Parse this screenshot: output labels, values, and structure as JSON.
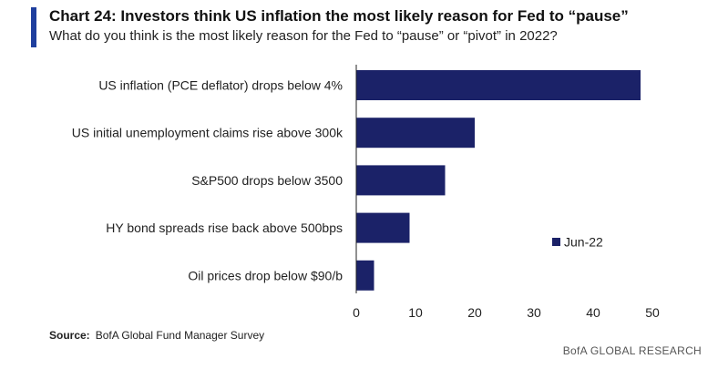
{
  "header": {
    "title": "Chart 24: Investors think US inflation the most likely reason for Fed to “pause”",
    "subtitle": "What do you think is the most likely reason for the Fed to “pause” or “pivot” in 2022?"
  },
  "chart_data": {
    "type": "bar",
    "orientation": "horizontal",
    "categories": [
      "US inflation (PCE deflator) drops below 4%",
      "US initial unemployment claims rise above 300k",
      "S&P500 drops below 3500",
      "HY bond spreads rise back above 500bps",
      "Oil prices drop below $90/b"
    ],
    "series": [
      {
        "name": "Jun-22",
        "values": [
          48,
          20,
          15,
          9,
          3
        ],
        "color": "#1b2268"
      }
    ],
    "xlim": [
      0,
      50
    ],
    "xticks": [
      0,
      10,
      20,
      30,
      40,
      50
    ],
    "legend_position": "right",
    "grid": false
  },
  "footer": {
    "source_label": "Source:",
    "source_text": "BofA Global Fund Manager Survey",
    "brand": "BofA GLOBAL RESEARCH"
  }
}
